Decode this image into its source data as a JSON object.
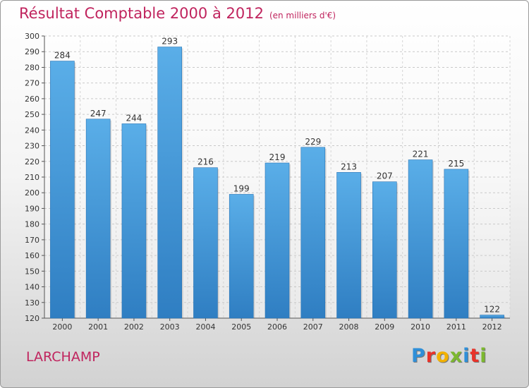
{
  "header": {
    "title": "Résultat Comptable 2000 à 2012",
    "subtitle": "(en milliers d'€)"
  },
  "location": "LARCHAMP",
  "logo": {
    "text": "Proxiti",
    "letters": [
      {
        "char": "P",
        "color": "#2f8fd8"
      },
      {
        "char": "r",
        "color": "#e8332a"
      },
      {
        "char": "o",
        "color": "#f2b100"
      },
      {
        "char": "x",
        "color": "#7cb82f"
      },
      {
        "char": "i",
        "color": "#2f8fd8"
      },
      {
        "char": "t",
        "color": "#e8332a"
      },
      {
        "char": "i",
        "color": "#7cb82f"
      }
    ]
  },
  "colors": {
    "title": "#c0245e",
    "bar_top": "#5aaee8",
    "bar_bottom": "#2f7ec2"
  },
  "chart_data": {
    "type": "bar",
    "title": "Résultat Comptable 2000 à 2012",
    "subtitle": "(en milliers d'€)",
    "categories": [
      "2000",
      "2001",
      "2002",
      "2003",
      "2004",
      "2005",
      "2006",
      "2007",
      "2008",
      "2009",
      "2010",
      "2011",
      "2012"
    ],
    "values": [
      284,
      247,
      244,
      293,
      216,
      199,
      219,
      229,
      213,
      207,
      221,
      215,
      122
    ],
    "ylim": [
      120,
      300
    ],
    "yticks": [
      120,
      130,
      140,
      150,
      160,
      170,
      180,
      190,
      200,
      210,
      220,
      230,
      240,
      250,
      260,
      270,
      280,
      290,
      300
    ],
    "grid": true,
    "legend": "none"
  }
}
